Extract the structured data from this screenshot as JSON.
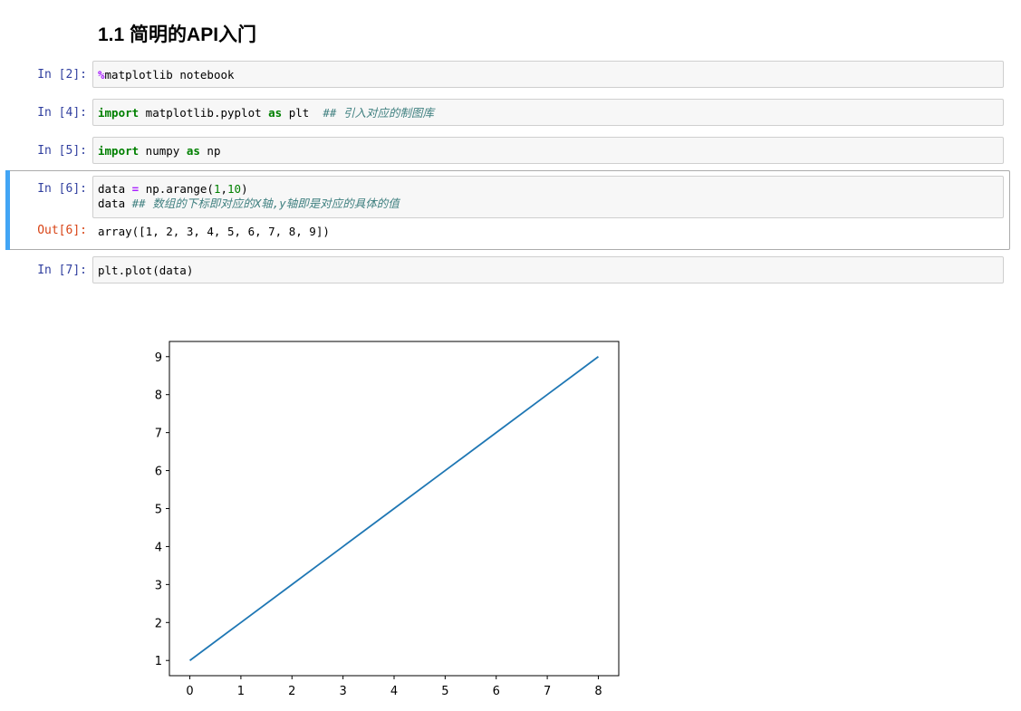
{
  "heading": "1.1  简明的API入门",
  "cells": {
    "c2": {
      "prompt": "In  [2]:",
      "magic": "%",
      "code": "matplotlib notebook"
    },
    "c4": {
      "prompt": "In  [4]:",
      "kw1": "import",
      "mid": " matplotlib.pyplot ",
      "kw2": "as",
      "tail": " plt  ",
      "comment": "## 引入对应的制图库"
    },
    "c5": {
      "prompt": "In  [5]:",
      "kw1": "import",
      "mid": " numpy ",
      "kw2": "as",
      "tail": " np"
    },
    "c6": {
      "prompt": "In  [6]:",
      "line1_a": "data ",
      "line1_op": "=",
      "line1_b": " np.arange(",
      "line1_n1": "1",
      "line1_c": ",",
      "line1_n2": "10",
      "line1_d": ")",
      "line2_a": "data ",
      "line2_comment": "## 数组的下标即对应的X轴,y轴即是对应的具体的值",
      "out_prompt": "Out[6]:",
      "output": "array([1, 2, 3, 4, 5, 6, 7, 8, 9])"
    },
    "c7": {
      "prompt": "In  [7]:",
      "code": "plt.plot(data)"
    }
  },
  "chart_data": {
    "type": "line",
    "x": [
      0,
      1,
      2,
      3,
      4,
      5,
      6,
      7,
      8
    ],
    "series": [
      {
        "values": [
          1,
          2,
          3,
          4,
          5,
          6,
          7,
          8,
          9
        ],
        "color": "#1f77b4"
      }
    ],
    "xticks": [
      "0",
      "1",
      "2",
      "3",
      "4",
      "5",
      "6",
      "7",
      "8"
    ],
    "yticks": [
      "1",
      "2",
      "3",
      "4",
      "5",
      "6",
      "7",
      "8",
      "9"
    ],
    "xlim": [
      -0.4,
      8.4
    ],
    "ylim": [
      0.6,
      9.4
    ],
    "grid": false,
    "title": "",
    "xlabel": "",
    "ylabel": ""
  }
}
